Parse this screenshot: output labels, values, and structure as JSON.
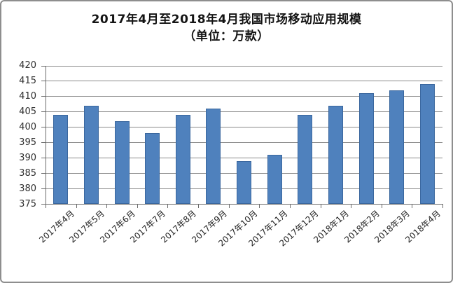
{
  "window": {
    "background": "#ffffff",
    "border_color": "#8e8e8e"
  },
  "title": {
    "line1": "2017年4月至2018年4月我国市场移动应用规模",
    "line2": "（单位：万款）"
  },
  "chart_data": {
    "type": "bar",
    "title": "2017年4月至2018年4月我国市场移动应用规模（单位：万款）",
    "xlabel": "",
    "ylabel": "",
    "unit": "万款",
    "categories": [
      "2017年4月",
      "2017年5月",
      "2017年6月",
      "2017年7月",
      "2017年8月",
      "2017年9月",
      "2017年10月",
      "2017年11月",
      "2017年12月",
      "2018年1月",
      "2018年2月",
      "2018年3月",
      "2018年4月"
    ],
    "values": [
      404,
      407,
      402,
      398,
      404,
      406,
      389,
      391,
      404,
      407,
      411,
      412,
      414
    ],
    "ylim": [
      375,
      420
    ],
    "yticks": [
      375,
      380,
      385,
      390,
      395,
      400,
      405,
      410,
      415,
      420
    ],
    "grid": true,
    "legend_position": "none",
    "colors": {
      "bar_fill": "#4f81bd",
      "bar_border": "#3a679e",
      "gridline": "#8a8a8a",
      "axis": "#6a6a6a",
      "tick_label": "#303030"
    }
  }
}
